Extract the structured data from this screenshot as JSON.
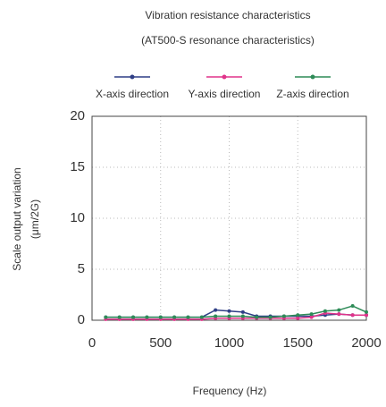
{
  "chart_data": {
    "type": "line",
    "title": "Vibration resistance characteristics",
    "subtitle": "(AT500-S resonance characteristics)",
    "xlabel": "Frequency (Hz)",
    "ylabel": [
      "Scale output variation",
      "(μm/2G)"
    ],
    "x": [
      100,
      200,
      300,
      400,
      500,
      600,
      700,
      800,
      900,
      1000,
      1100,
      1200,
      1300,
      1400,
      1500,
      1600,
      1700,
      1800,
      1900,
      2000
    ],
    "series": [
      {
        "name": "X-axis direction",
        "color": "#2f3f86",
        "values": [
          0.3,
          0.3,
          0.3,
          0.3,
          0.3,
          0.3,
          0.3,
          0.3,
          1.0,
          0.9,
          0.8,
          0.4,
          0.4,
          0.4,
          0.4,
          0.4,
          0.5,
          0.6,
          0.5,
          0.5
        ]
      },
      {
        "name": "Y-axis direction",
        "color": "#e0338a",
        "values": [
          0.1,
          0.1,
          0.1,
          0.1,
          0.1,
          0.1,
          0.1,
          0.1,
          0.2,
          0.2,
          0.2,
          0.2,
          0.2,
          0.2,
          0.2,
          0.3,
          0.7,
          0.6,
          0.5,
          0.5
        ]
      },
      {
        "name": "Z-axis direction",
        "color": "#2e8b57",
        "values": [
          0.3,
          0.3,
          0.3,
          0.3,
          0.3,
          0.3,
          0.3,
          0.3,
          0.4,
          0.4,
          0.4,
          0.3,
          0.3,
          0.4,
          0.5,
          0.6,
          0.9,
          1.0,
          1.4,
          0.8
        ]
      }
    ],
    "xlim": [
      0,
      2000
    ],
    "xticks": [
      0,
      500,
      1000,
      1500,
      2000
    ],
    "ylim": [
      0,
      20
    ],
    "yticks": [
      0,
      5,
      10,
      15,
      20
    ],
    "grid": true,
    "legend": "top"
  }
}
